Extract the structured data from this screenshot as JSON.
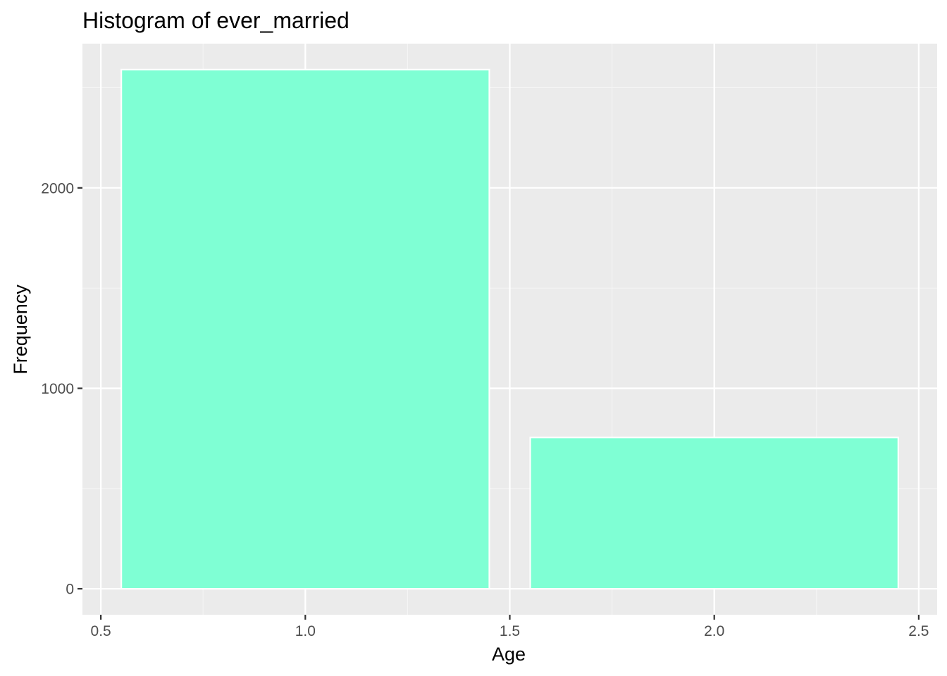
{
  "chart_data": {
    "type": "bar",
    "title": "Histogram of ever_married",
    "xlabel": "Age",
    "ylabel": "Frequency",
    "bins": [
      {
        "x_start": 0.55,
        "x_end": 1.45,
        "count": 2590
      },
      {
        "x_start": 1.55,
        "x_end": 2.45,
        "count": 755
      }
    ],
    "x_ticks": [
      {
        "value": 0.5,
        "label": "0.5"
      },
      {
        "value": 1.0,
        "label": "1.0"
      },
      {
        "value": 1.5,
        "label": "1.5"
      },
      {
        "value": 2.0,
        "label": "2.0"
      },
      {
        "value": 2.5,
        "label": "2.5"
      }
    ],
    "y_ticks": [
      {
        "value": 0,
        "label": "0"
      },
      {
        "value": 1000,
        "label": "1000"
      },
      {
        "value": 2000,
        "label": "2000"
      }
    ],
    "xlim": [
      0.455,
      2.545
    ],
    "ylim": [
      -129.5,
      2719.5
    ],
    "grid": true,
    "legend": "none",
    "colors": {
      "panel_background": "#ebebeb",
      "grid_major": "#ffffff",
      "grid_minor": "#f5f5f5",
      "bar_fill": "#7fffd4",
      "bar_outline": "#ffffff",
      "tick_mark": "#333333"
    }
  }
}
